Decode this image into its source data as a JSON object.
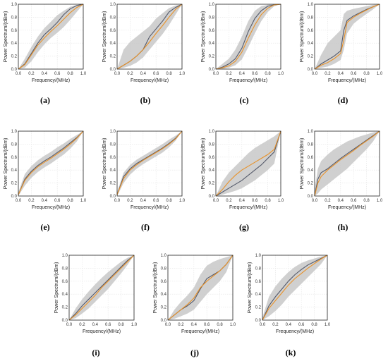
{
  "chart_data": [
    {
      "type": "line",
      "caption": "(a)",
      "xlabel": "Frequency/(MHz)",
      "ylabel": "Power Spectrum/(dBm)",
      "xlim": [
        0,
        1
      ],
      "ylim": [
        0,
        1
      ],
      "xticks": [
        "0.0",
        "0.2",
        "0.4",
        "0.6",
        "0.8",
        "1.0"
      ],
      "yticks": [
        "0.0",
        "0.2",
        "0.4",
        "0.6",
        "0.8",
        "1.0"
      ],
      "grid": true,
      "x": [
        0,
        0.1,
        0.2,
        0.3,
        0.4,
        0.5,
        0.6,
        0.7,
        0.8,
        0.9,
        1.0
      ],
      "series": [
        {
          "color": "#555a6a",
          "values": [
            0,
            0.08,
            0.24,
            0.4,
            0.53,
            0.62,
            0.72,
            0.84,
            0.93,
            0.98,
            1.0
          ]
        },
        {
          "color": "#e8922a",
          "values": [
            0,
            0.07,
            0.22,
            0.37,
            0.48,
            0.58,
            0.67,
            0.77,
            0.87,
            0.95,
            1.0
          ]
        }
      ],
      "band_lower": [
        0,
        0.02,
        0.12,
        0.26,
        0.38,
        0.48,
        0.56,
        0.65,
        0.76,
        0.88,
        1.0
      ],
      "band_upper": [
        0,
        0.16,
        0.34,
        0.5,
        0.63,
        0.73,
        0.83,
        0.9,
        0.96,
        0.99,
        1.0
      ]
    },
    {
      "type": "line",
      "caption": "(b)",
      "xlabel": "Frequency/(MHz)",
      "ylabel": "Power Spectrum/(dBm)",
      "xlim": [
        0,
        1
      ],
      "ylim": [
        0,
        1
      ],
      "xticks": [
        "0.0",
        "0.2",
        "0.4",
        "0.6",
        "0.8",
        "1.0"
      ],
      "yticks": [
        "0.0",
        "0.2",
        "0.4",
        "0.6",
        "0.8",
        "1.0"
      ],
      "grid": true,
      "x": [
        0,
        0.1,
        0.2,
        0.3,
        0.4,
        0.5,
        0.6,
        0.7,
        0.8,
        0.9,
        1.0
      ],
      "series": [
        {
          "color": "#555a6a",
          "values": [
            0,
            0.06,
            0.12,
            0.2,
            0.3,
            0.5,
            0.62,
            0.74,
            0.88,
            0.95,
            1.0
          ]
        },
        {
          "color": "#e8922a",
          "values": [
            0,
            0.06,
            0.12,
            0.2,
            0.3,
            0.42,
            0.55,
            0.67,
            0.8,
            0.92,
            1.0
          ]
        }
      ],
      "band_lower": [
        0,
        0.02,
        0.05,
        0.1,
        0.18,
        0.3,
        0.42,
        0.54,
        0.68,
        0.84,
        1.0
      ],
      "band_upper": [
        0,
        0.3,
        0.42,
        0.5,
        0.58,
        0.66,
        0.78,
        0.86,
        0.94,
        0.98,
        1.0
      ]
    },
    {
      "type": "line",
      "caption": "(c)",
      "xlabel": "Frequency/(MHz)",
      "ylabel": "Power Spectrum/(dBm)",
      "xlim": [
        0,
        1
      ],
      "ylim": [
        0,
        1
      ],
      "xticks": [
        "0.0",
        "0.2",
        "0.4",
        "0.6",
        "0.8",
        "1.0"
      ],
      "yticks": [
        "0.0",
        "0.2",
        "0.4",
        "0.6",
        "0.8",
        "1.0"
      ],
      "grid": true,
      "x": [
        0,
        0.1,
        0.2,
        0.3,
        0.4,
        0.5,
        0.6,
        0.7,
        0.8,
        0.9,
        1.0
      ],
      "series": [
        {
          "color": "#555a6a",
          "values": [
            0,
            0.03,
            0.08,
            0.16,
            0.32,
            0.58,
            0.78,
            0.9,
            0.97,
            0.99,
            1.0
          ]
        },
        {
          "color": "#e8922a",
          "values": [
            0,
            0.02,
            0.05,
            0.12,
            0.26,
            0.48,
            0.68,
            0.84,
            0.94,
            0.99,
            1.0
          ]
        }
      ],
      "band_lower": [
        0,
        0.0,
        0.02,
        0.06,
        0.15,
        0.34,
        0.55,
        0.74,
        0.88,
        0.97,
        1.0
      ],
      "band_upper": [
        0,
        0.08,
        0.16,
        0.3,
        0.5,
        0.74,
        0.9,
        0.97,
        0.99,
        1.0,
        1.0
      ]
    },
    {
      "type": "line",
      "caption": "(d)",
      "xlabel": "Frequency/(MHz)",
      "ylabel": "Power Spectrum/(dBm)",
      "xlim": [
        0,
        1
      ],
      "ylim": [
        0,
        1
      ],
      "xticks": [
        "0.0",
        "0.2",
        "0.4",
        "0.6",
        "0.8",
        "1.0"
      ],
      "yticks": [
        "0.0",
        "0.2",
        "0.4",
        "0.6",
        "0.8",
        "1.0"
      ],
      "grid": true,
      "x": [
        0,
        0.1,
        0.2,
        0.3,
        0.4,
        0.45,
        0.5,
        0.6,
        0.7,
        0.8,
        0.9,
        1.0
      ],
      "series": [
        {
          "color": "#555a6a",
          "values": [
            0,
            0.08,
            0.14,
            0.2,
            0.28,
            0.6,
            0.75,
            0.82,
            0.87,
            0.92,
            0.96,
            1.0
          ]
        },
        {
          "color": "#e8922a",
          "values": [
            0,
            0.06,
            0.1,
            0.16,
            0.24,
            0.45,
            0.72,
            0.8,
            0.86,
            0.91,
            0.96,
            1.0
          ]
        }
      ],
      "band_lower": [
        0,
        0.02,
        0.04,
        0.08,
        0.14,
        0.3,
        0.55,
        0.7,
        0.78,
        0.85,
        0.92,
        1.0
      ],
      "band_upper": [
        0,
        0.22,
        0.4,
        0.5,
        0.6,
        0.85,
        0.9,
        0.93,
        0.95,
        0.97,
        0.99,
        1.0
      ]
    },
    {
      "type": "line",
      "caption": "(e)",
      "xlabel": "Frequency/(MHz)",
      "ylabel": "Power Spectrum/(dBm)",
      "xlim": [
        0,
        1
      ],
      "ylim": [
        0,
        1
      ],
      "xticks": [
        "0.0",
        "0.2",
        "0.4",
        "0.6",
        "0.8",
        "1.0"
      ],
      "yticks": [
        "0.0",
        "0.2",
        "0.4",
        "0.6",
        "0.8",
        "1.0"
      ],
      "grid": true,
      "x": [
        0,
        0.1,
        0.2,
        0.3,
        0.4,
        0.5,
        0.6,
        0.7,
        0.8,
        0.9,
        1.0
      ],
      "series": [
        {
          "color": "#555a6a",
          "values": [
            0.02,
            0.26,
            0.38,
            0.47,
            0.54,
            0.6,
            0.67,
            0.74,
            0.82,
            0.9,
            1.0
          ]
        },
        {
          "color": "#e8922a",
          "values": [
            0.02,
            0.24,
            0.36,
            0.45,
            0.52,
            0.58,
            0.65,
            0.72,
            0.8,
            0.89,
            1.0
          ]
        }
      ],
      "band_lower": [
        0,
        0.16,
        0.28,
        0.37,
        0.44,
        0.5,
        0.57,
        0.64,
        0.73,
        0.84,
        1.0
      ],
      "band_upper": [
        0.06,
        0.34,
        0.46,
        0.55,
        0.62,
        0.68,
        0.75,
        0.81,
        0.88,
        0.94,
        1.0
      ]
    },
    {
      "type": "line",
      "caption": "(f)",
      "xlabel": "Frequency/(MHz)",
      "ylabel": "Power Spectrum/(dBm)",
      "xlim": [
        0,
        1
      ],
      "ylim": [
        0,
        1
      ],
      "xticks": [
        "0.0",
        "0.2",
        "0.4",
        "0.6",
        "0.8",
        "1.0"
      ],
      "yticks": [
        "0.0",
        "0.2",
        "0.4",
        "0.6",
        "0.8",
        "1.0"
      ],
      "grid": true,
      "x": [
        0,
        0.1,
        0.2,
        0.3,
        0.4,
        0.5,
        0.6,
        0.7,
        0.8,
        0.9,
        1.0
      ],
      "series": [
        {
          "color": "#555a6a",
          "values": [
            0.02,
            0.3,
            0.42,
            0.5,
            0.56,
            0.62,
            0.68,
            0.74,
            0.81,
            0.89,
            1.0
          ]
        },
        {
          "color": "#e8922a",
          "values": [
            0.02,
            0.27,
            0.4,
            0.48,
            0.55,
            0.61,
            0.67,
            0.73,
            0.8,
            0.88,
            1.0
          ]
        }
      ],
      "band_lower": [
        0,
        0.2,
        0.33,
        0.42,
        0.49,
        0.55,
        0.61,
        0.67,
        0.75,
        0.85,
        1.0
      ],
      "band_upper": [
        0.06,
        0.36,
        0.48,
        0.56,
        0.62,
        0.68,
        0.74,
        0.8,
        0.87,
        0.93,
        1.0
      ]
    },
    {
      "type": "line",
      "caption": "(g)",
      "xlabel": "Frequency/(MHz)",
      "ylabel": "Power Spectrum/(dBm)",
      "xlim": [
        0,
        1
      ],
      "ylim": [
        0,
        1
      ],
      "xticks": [
        "0.0",
        "0.2",
        "0.4",
        "0.6",
        "0.8",
        "1.0"
      ],
      "yticks": [
        "0.0",
        "0.2",
        "0.4",
        "0.6",
        "0.8",
        "1.0"
      ],
      "grid": true,
      "x": [
        0,
        0.1,
        0.2,
        0.3,
        0.4,
        0.5,
        0.6,
        0.7,
        0.8,
        0.9,
        1.0
      ],
      "series": [
        {
          "color": "#555a6a",
          "values": [
            0,
            0.06,
            0.12,
            0.18,
            0.24,
            0.32,
            0.4,
            0.48,
            0.58,
            0.68,
            1.0
          ]
        },
        {
          "color": "#e8922a",
          "values": [
            0,
            0.1,
            0.22,
            0.32,
            0.4,
            0.46,
            0.52,
            0.58,
            0.64,
            0.72,
            1.0
          ]
        }
      ],
      "band_lower": [
        0,
        0.02,
        0.05,
        0.08,
        0.12,
        0.18,
        0.24,
        0.32,
        0.4,
        0.5,
        1.0
      ],
      "band_upper": [
        0,
        0.22,
        0.36,
        0.46,
        0.56,
        0.66,
        0.74,
        0.8,
        0.86,
        0.92,
        1.0
      ]
    },
    {
      "type": "line",
      "caption": "(h)",
      "xlabel": "Frequency/(MHz)",
      "ylabel": "Power Spectrum/(dBm)",
      "xlim": [
        0,
        1
      ],
      "ylim": [
        0,
        1
      ],
      "xticks": [
        "0.0",
        "0.2",
        "0.4",
        "0.6",
        "0.8",
        "1.0"
      ],
      "yticks": [
        "0.0",
        "0.2",
        "0.4",
        "0.6",
        "0.8",
        "1.0"
      ],
      "grid": true,
      "x": [
        0,
        0.05,
        0.1,
        0.2,
        0.3,
        0.4,
        0.5,
        0.6,
        0.7,
        0.8,
        0.9,
        1.0
      ],
      "series": [
        {
          "color": "#555a6a",
          "values": [
            0,
            0.26,
            0.36,
            0.42,
            0.5,
            0.58,
            0.65,
            0.72,
            0.79,
            0.86,
            0.93,
            1.0
          ]
        },
        {
          "color": "#e8922a",
          "values": [
            0,
            0.2,
            0.3,
            0.4,
            0.48,
            0.56,
            0.63,
            0.7,
            0.78,
            0.85,
            0.92,
            1.0
          ]
        }
      ],
      "band_lower": [
        0,
        0.04,
        0.1,
        0.18,
        0.26,
        0.34,
        0.42,
        0.52,
        0.62,
        0.72,
        0.84,
        1.0
      ],
      "band_upper": [
        0.1,
        0.42,
        0.54,
        0.64,
        0.72,
        0.78,
        0.84,
        0.88,
        0.92,
        0.95,
        0.98,
        1.0
      ]
    },
    {
      "type": "line",
      "caption": "(i)",
      "xlabel": "Frequency/(MHz)",
      "ylabel": "Power Spectrum/(dBm)",
      "xlim": [
        0,
        1
      ],
      "ylim": [
        0,
        1
      ],
      "xticks": [
        "0.0",
        "0.2",
        "0.4",
        "0.6",
        "0.8",
        "1.0"
      ],
      "yticks": [
        "0.0",
        "0.2",
        "0.4",
        "0.6",
        "0.8",
        "1.0"
      ],
      "grid": true,
      "x": [
        0,
        0.1,
        0.2,
        0.3,
        0.4,
        0.5,
        0.6,
        0.7,
        0.8,
        0.9,
        1.0
      ],
      "series": [
        {
          "color": "#555a6a",
          "values": [
            0,
            0.1,
            0.22,
            0.32,
            0.42,
            0.52,
            0.62,
            0.72,
            0.82,
            0.92,
            1.0
          ]
        },
        {
          "color": "#e8922a",
          "values": [
            0,
            0.08,
            0.18,
            0.28,
            0.38,
            0.5,
            0.6,
            0.7,
            0.8,
            0.9,
            1.0
          ]
        }
      ],
      "band_lower": [
        0,
        0.03,
        0.1,
        0.18,
        0.28,
        0.38,
        0.48,
        0.6,
        0.72,
        0.85,
        1.0
      ],
      "band_upper": [
        0,
        0.18,
        0.32,
        0.44,
        0.55,
        0.65,
        0.74,
        0.82,
        0.9,
        0.96,
        1.0
      ]
    },
    {
      "type": "line",
      "caption": "(j)",
      "xlabel": "Frequency/(MHz)",
      "ylabel": "Power Spectrum/(dBm)",
      "xlim": [
        0,
        1
      ],
      "ylim": [
        0,
        1
      ],
      "xticks": [
        "0.0",
        "0.2",
        "0.4",
        "0.6",
        "0.8",
        "1.0"
      ],
      "yticks": [
        "0.0",
        "0.2",
        "0.4",
        "0.6",
        "0.8",
        "1.0"
      ],
      "grid": true,
      "x": [
        0,
        0.1,
        0.2,
        0.3,
        0.4,
        0.5,
        0.6,
        0.7,
        0.8,
        0.9,
        1.0
      ],
      "series": [
        {
          "color": "#555a6a",
          "values": [
            0,
            0.08,
            0.16,
            0.22,
            0.3,
            0.48,
            0.64,
            0.7,
            0.76,
            0.86,
            1.0
          ]
        },
        {
          "color": "#e8922a",
          "values": [
            0,
            0.08,
            0.16,
            0.24,
            0.34,
            0.5,
            0.6,
            0.68,
            0.76,
            0.86,
            1.0
          ]
        }
      ],
      "band_lower": [
        0,
        0.02,
        0.06,
        0.1,
        0.16,
        0.28,
        0.4,
        0.5,
        0.6,
        0.74,
        1.0
      ],
      "band_upper": [
        0,
        0.16,
        0.28,
        0.38,
        0.5,
        0.7,
        0.84,
        0.9,
        0.94,
        0.97,
        1.0
      ]
    },
    {
      "type": "line",
      "caption": "(k)",
      "xlabel": "Frequency/(MHz)",
      "ylabel": "Power Spectrum/(dBm)",
      "xlim": [
        0,
        1
      ],
      "ylim": [
        0,
        1
      ],
      "xticks": [
        "0.0",
        "0.2",
        "0.4",
        "0.6",
        "0.8",
        "1.0"
      ],
      "yticks": [
        "0.0",
        "0.2",
        "0.4",
        "0.6",
        "0.8",
        "1.0"
      ],
      "grid": true,
      "x": [
        0,
        0.1,
        0.2,
        0.3,
        0.4,
        0.5,
        0.6,
        0.7,
        0.8,
        0.9,
        1.0
      ],
      "series": [
        {
          "color": "#555a6a",
          "values": [
            0,
            0.22,
            0.36,
            0.48,
            0.6,
            0.7,
            0.78,
            0.85,
            0.9,
            0.95,
            1.0
          ]
        },
        {
          "color": "#e8922a",
          "values": [
            0,
            0.18,
            0.3,
            0.42,
            0.54,
            0.64,
            0.72,
            0.8,
            0.87,
            0.94,
            1.0
          ]
        }
      ],
      "band_lower": [
        0,
        0.06,
        0.14,
        0.24,
        0.36,
        0.46,
        0.56,
        0.66,
        0.76,
        0.86,
        1.0
      ],
      "band_upper": [
        0.04,
        0.36,
        0.52,
        0.64,
        0.74,
        0.82,
        0.88,
        0.92,
        0.95,
        0.98,
        1.0
      ]
    }
  ]
}
